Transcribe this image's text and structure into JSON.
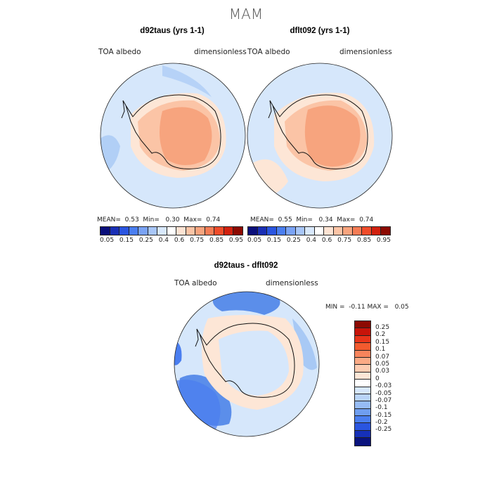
{
  "page": {
    "title": "MAM"
  },
  "colors": {
    "ocean_light": "#d6e7fb",
    "land_peach": "#fbc4a6",
    "land_salmon": "#f7a47e",
    "pale": "#fde6d6",
    "mid_blue": "#a8c9f5",
    "deep_blue": "#5b8eea",
    "coast": "#111111"
  },
  "panels": [
    {
      "id": "d92taus",
      "title": "d92taus (yrs 1-1)",
      "variable": "TOA albedo",
      "units": "dimensionless",
      "stats": {
        "mean_label": "MEAN=",
        "mean": "0.53",
        "min_label": "Min=",
        "min": "0.30",
        "max_label": "Max=",
        "max": "0.74"
      }
    },
    {
      "id": "dflt092",
      "title": "dflt092 (yrs 1-1)",
      "variable": "TOA albedo",
      "units": "dimensionless",
      "stats": {
        "mean_label": "MEAN=",
        "mean": "0.55",
        "min_label": "Min=",
        "min": "0.34",
        "max_label": "Max=",
        "max": "0.74"
      }
    }
  ],
  "abs_colorbar": {
    "colors": [
      "#0a0f7a",
      "#1a2fb5",
      "#2a55e0",
      "#4a7ef0",
      "#7aa3f5",
      "#a8c6f8",
      "#d8e8fc",
      "#ffffff",
      "#fde3d3",
      "#fbc4a6",
      "#f7a47e",
      "#f47c55",
      "#ef4c2a",
      "#d1210f",
      "#8c0a02"
    ],
    "ticks": [
      "0.05",
      "0.15",
      "0.25",
      "0.4",
      "0.6",
      "0.75",
      "0.85",
      "0.95"
    ]
  },
  "diff_panel": {
    "title": "d92taus - dflt092",
    "variable": "TOA albedo",
    "units": "dimensionless",
    "stats": {
      "min_label": "MIN =",
      "min": "-0.11",
      "max_label": "MAX =",
      "max": "0.05"
    }
  },
  "diff_colorbar": {
    "colors": [
      "#8c0a02",
      "#c8140a",
      "#e8341a",
      "#f25a2e",
      "#f7845c",
      "#fbaa85",
      "#fdccb1",
      "#fde6d6",
      "#ffffff",
      "#d6e7fb",
      "#b9d4f8",
      "#96bbf5",
      "#6f9ef0",
      "#4a7ef0",
      "#2a55e0",
      "#1630b8",
      "#0a137d"
    ],
    "ticks": [
      "0.25",
      "0.2",
      "0.15",
      "0.1",
      "0.07",
      "0.05",
      "0.03",
      "0",
      "-0.03",
      "-0.05",
      "-0.07",
      "-0.1",
      "-0.15",
      "-0.2",
      "-0.25"
    ]
  }
}
